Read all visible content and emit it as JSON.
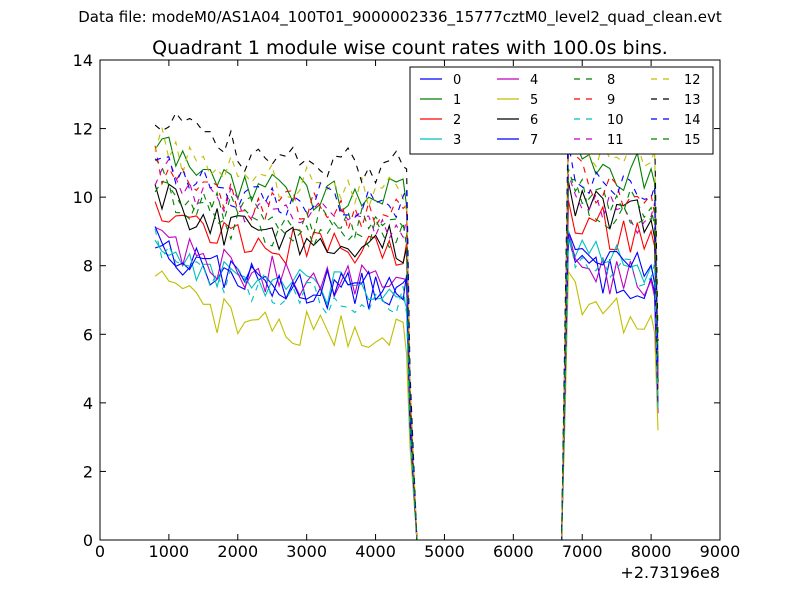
{
  "suptitle": "Data file: modeM0/AS1A04_100T01_9000002336_15777cztM0_level2_quad_clean.evt",
  "chart_data": {
    "type": "line",
    "title": "Quadrant 1 module wise count rates with 100.0s bins.",
    "xlabel": "",
    "ylabel": "",
    "x_offset_label": "+2.73196e8",
    "xlim": [
      0,
      9000
    ],
    "ylim": [
      0,
      14
    ],
    "xticks": [
      "0",
      "1000",
      "2000",
      "3000",
      "4000",
      "5000",
      "6000",
      "7000",
      "8000",
      "9000"
    ],
    "yticks": [
      "0",
      "2",
      "4",
      "6",
      "8",
      "10",
      "12",
      "14"
    ],
    "grid": false,
    "legend_position": "top-right",
    "legend_columns": 4,
    "segment_1_x_range": [
      800,
      4600
    ],
    "gap_zero_x_range": [
      4600,
      6700
    ],
    "segment_2_x_range": [
      6700,
      8100
    ],
    "series": [
      {
        "name": "0",
        "color": "#0000ff",
        "dash": "solid",
        "mean_level_seg1": 7.2,
        "mean_level_seg2": 7.4
      },
      {
        "name": "1",
        "color": "#008000",
        "dash": "solid",
        "mean_level_seg1": 10.0,
        "mean_level_seg2": 10.6
      },
      {
        "name": "2",
        "color": "#ff0000",
        "dash": "solid",
        "mean_level_seg1": 8.4,
        "mean_level_seg2": 8.8
      },
      {
        "name": "3",
        "color": "#00bfbf",
        "dash": "solid",
        "mean_level_seg1": 7.2,
        "mean_level_seg2": 7.8
      },
      {
        "name": "4",
        "color": "#bf00bf",
        "dash": "solid",
        "mean_level_seg1": 7.5,
        "mean_level_seg2": 7.4
      },
      {
        "name": "5",
        "color": "#bfbf00",
        "dash": "solid",
        "mean_level_seg1": 6.0,
        "mean_level_seg2": 6.4
      },
      {
        "name": "6",
        "color": "#000000",
        "dash": "solid",
        "mean_level_seg1": 8.6,
        "mean_level_seg2": 9.2
      },
      {
        "name": "7",
        "color": "#0000ff",
        "dash": "solid",
        "mean_level_seg1": 7.3,
        "mean_level_seg2": 7.9
      },
      {
        "name": "8",
        "color": "#008000",
        "dash": "dashed",
        "mean_level_seg1": 9.2,
        "mean_level_seg2": 9.6
      },
      {
        "name": "9",
        "color": "#ff0000",
        "dash": "dashed",
        "mean_level_seg1": 9.5,
        "mean_level_seg2": 10.0
      },
      {
        "name": "10",
        "color": "#00bfbf",
        "dash": "dashed",
        "mean_level_seg1": 7.0,
        "mean_level_seg2": 7.6
      },
      {
        "name": "11",
        "color": "#bf00bf",
        "dash": "dashed",
        "mean_level_seg1": 9.3,
        "mean_level_seg2": 9.4
      },
      {
        "name": "12",
        "color": "#bfbf00",
        "dash": "dashed",
        "mean_level_seg1": 10.2,
        "mean_level_seg2": 11.0
      },
      {
        "name": "13",
        "color": "#000000",
        "dash": "dashed",
        "mean_level_seg1": 10.9,
        "mean_level_seg2": 11.6
      },
      {
        "name": "14",
        "color": "#0000ff",
        "dash": "dashed",
        "mean_level_seg1": 9.8,
        "mean_level_seg2": 10.0
      },
      {
        "name": "15",
        "color": "#008000",
        "dash": "dashed",
        "mean_level_seg1": 8.8,
        "mean_level_seg2": 9.4
      }
    ]
  }
}
